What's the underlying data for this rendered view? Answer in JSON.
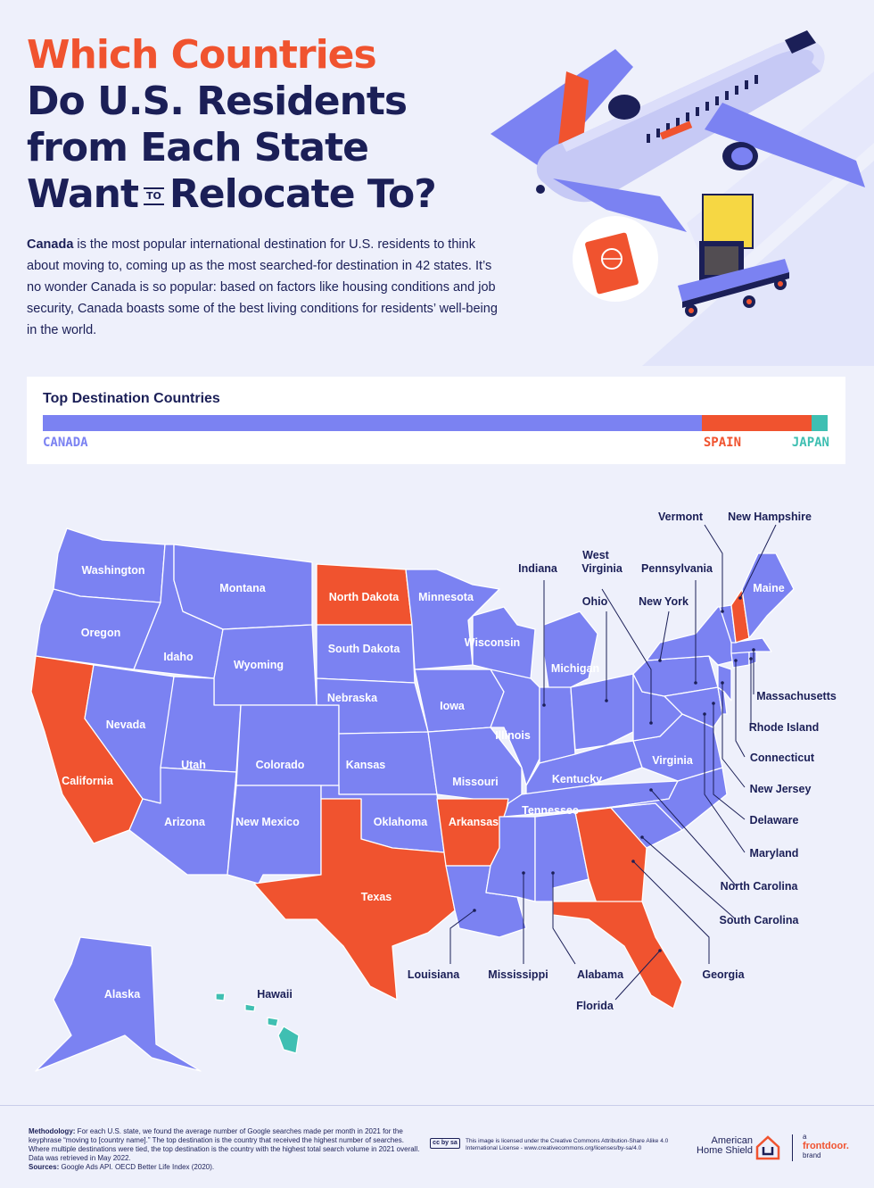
{
  "title": {
    "line1": "Which Countries",
    "line2": "Do U.S. Residents",
    "line3": "from Each State",
    "line4_a": "Want",
    "line4_to": "TO",
    "line4_b": "Relocate To?"
  },
  "intro": {
    "bold": "Canada",
    "text": " is the most popular international destination for U.S. residents to think about moving to, coming up as the most searched-for destination in 42 states. It’s no wonder Canada is so popular: based on factors like housing conditions and job security, Canada boasts some of the best living conditions for residents’ well-being in the world."
  },
  "colors": {
    "canada": "#7b82f2",
    "spain": "#f0532f",
    "japan": "#3fbfb2",
    "navy": "#1b1f57"
  },
  "top_destinations": {
    "title": "Top Destination Countries",
    "countries": [
      {
        "name": "CANADA",
        "states": 42,
        "color": "#7b82f2"
      },
      {
        "name": "SPAIN",
        "states": 7,
        "color": "#f0532f"
      },
      {
        "name": "JAPAN",
        "states": 1,
        "color": "#3fbfb2"
      }
    ]
  },
  "states": {
    "washington": "Washington",
    "oregon": "Oregon",
    "california": "California",
    "nevada": "Nevada",
    "idaho": "Idaho",
    "montana": "Montana",
    "wyoming": "Wyoming",
    "utah": "Utah",
    "arizona": "Arizona",
    "colorado": "Colorado",
    "new_mexico": "New Mexico",
    "north_dakota": "North Dakota",
    "south_dakota": "South Dakota",
    "nebraska": "Nebraska",
    "kansas": "Kansas",
    "oklahoma": "Oklahoma",
    "texas": "Texas",
    "minnesota": "Minnesota",
    "iowa": "Iowa",
    "missouri": "Missouri",
    "arkansas": "Arkansas",
    "louisiana": "Louisiana",
    "wisconsin": "Wisconsin",
    "illinois": "Illinois",
    "michigan": "Michigan",
    "indiana": "Indiana",
    "ohio": "Ohio",
    "kentucky": "Kentucky",
    "tennessee": "Tennessee",
    "mississippi": "Mississippi",
    "alabama": "Alabama",
    "georgia": "Georgia",
    "florida": "Florida",
    "south_carolina": "South Carolina",
    "north_carolina": "North Carolina",
    "virginia": "Virginia",
    "west_virginia_1": "West",
    "west_virginia_2": "Virginia",
    "pennsylvania": "Pennsylvania",
    "new_york": "New York",
    "vermont": "Vermont",
    "new_hampshire": "New Hampshire",
    "maine": "Maine",
    "massachusetts": "Massachusetts",
    "rhode_island": "Rhode Island",
    "connecticut": "Connecticut",
    "new_jersey": "New Jersey",
    "delaware": "Delaware",
    "maryland": "Maryland",
    "alaska": "Alaska",
    "hawaii": "Hawaii"
  },
  "footer": {
    "method_label": "Methodology:",
    "method_text": " For each U.S. state, we found the average number of Google searches made per month in 2021 for the keyphrase “moving to [country name].” The top destination is the country that received the highest number of searches. Where multiple destinations were tied, the top destination is the country with the highest total search volume in 2021 overall. Data was retrieved in May 2022.",
    "sources_label": "Sources:",
    "sources_text": " Google Ads API. OECD Better Life Index (2020).",
    "license_badge": "cc by sa",
    "license_text": "This image is licensed under the Creative Commons Attribution-Share Alike 4.0 International License - www.creativecommons.org/licenses/by-sa/4.0",
    "brand_1": "American",
    "brand_2": "Home Shield",
    "fd_a": "a",
    "fd_name": "frontdoor.",
    "fd_b": "brand"
  }
}
